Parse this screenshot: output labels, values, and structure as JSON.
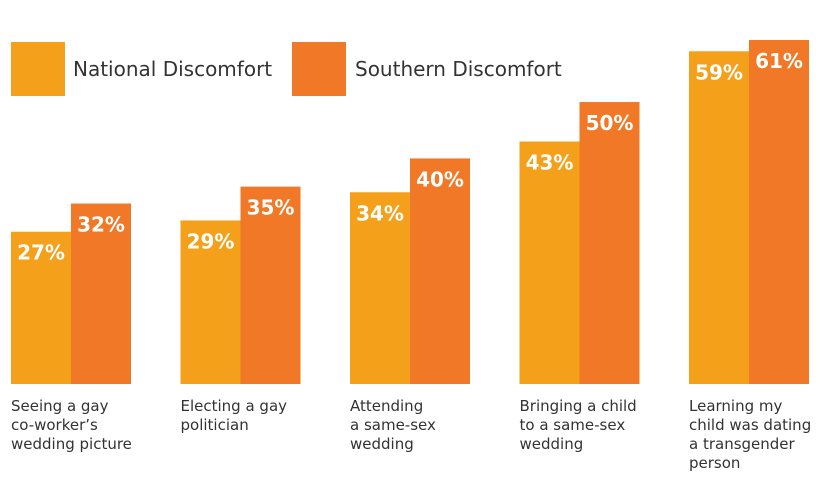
{
  "chart_data": {
    "type": "bar",
    "categories": [
      [
        "Seeing a gay",
        "co-worker’s",
        "wedding picture"
      ],
      [
        "Electing a gay",
        "politician"
      ],
      [
        "Attending",
        "a same-sex",
        "wedding"
      ],
      [
        "Bringing a child",
        "to a same-sex",
        "wedding"
      ],
      [
        "Learning my",
        "child was dating",
        "a transgender",
        "person"
      ]
    ],
    "series": [
      {
        "name": "National Discomfort",
        "color": "#F5A01A",
        "values": [
          27,
          29,
          34,
          43,
          59
        ]
      },
      {
        "name": "Southern Discomfort",
        "color": "#F07826",
        "values": [
          32,
          35,
          40,
          50,
          61
        ]
      }
    ],
    "value_suffix": "%",
    "ylim": [
      0,
      61
    ],
    "legend_position": "top-left",
    "grid": false
  }
}
